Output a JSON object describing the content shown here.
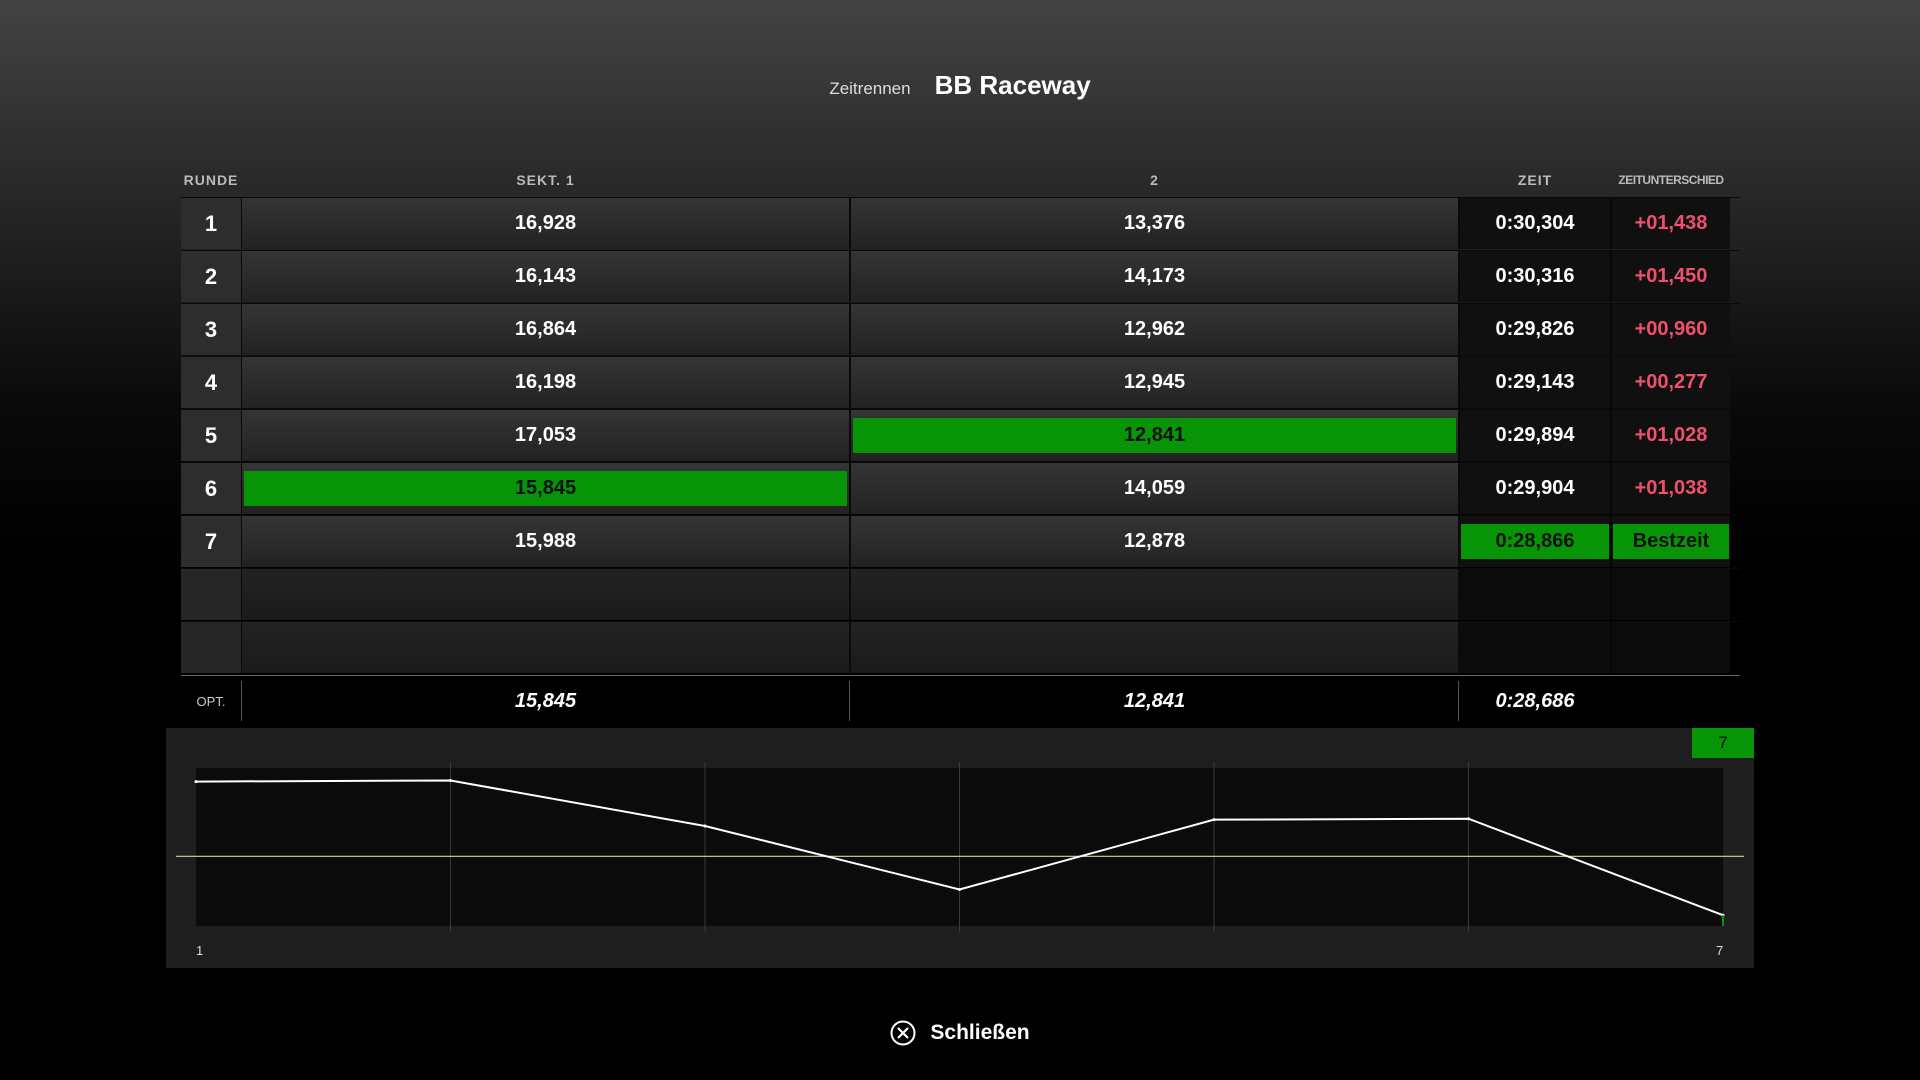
{
  "header": {
    "mode": "Zeitrennen",
    "track": "BB Raceway"
  },
  "columns": {
    "lap": "RUNDE",
    "sector1": "SEKT. 1",
    "sector2": "2",
    "time": "ZEIT",
    "diff": "ZEITUNTERSCHIED"
  },
  "laps": [
    {
      "lap": "1",
      "s1": "16,928",
      "s2": "13,376",
      "time": "0:30,304",
      "diff": "+01,438"
    },
    {
      "lap": "2",
      "s1": "16,143",
      "s2": "14,173",
      "time": "0:30,316",
      "diff": "+01,450"
    },
    {
      "lap": "3",
      "s1": "16,864",
      "s2": "12,962",
      "time": "0:29,826",
      "diff": "+00,960"
    },
    {
      "lap": "4",
      "s1": "16,198",
      "s2": "12,945",
      "time": "0:29,143",
      "diff": "+00,277"
    },
    {
      "lap": "5",
      "s1": "17,053",
      "s2": "12,841",
      "time": "0:29,894",
      "diff": "+01,028"
    },
    {
      "lap": "6",
      "s1": "15,845",
      "s2": "14,059",
      "time": "0:29,904",
      "diff": "+01,038"
    },
    {
      "lap": "7",
      "s1": "15,988",
      "s2": "12,878",
      "time": "0:28,866",
      "diff": "Bestzeit"
    }
  ],
  "optimal": {
    "label": "OPT.",
    "s1": "15,845",
    "s2": "12,841",
    "time": "0:28,686"
  },
  "chart": {
    "selected_lap": "7",
    "x_start": "1",
    "x_end": "7",
    "accent_color": "#079407",
    "line_color": "#ffffff",
    "reference_color": "#d8d0a8"
  },
  "chart_data": {
    "type": "line",
    "x": [
      1,
      2,
      3,
      4,
      5,
      6,
      7
    ],
    "series": [
      {
        "values": [
          30.304,
          30.316,
          29.826,
          29.143,
          29.894,
          29.904,
          28.866
        ]
      }
    ],
    "reference_line": 29.5,
    "xlabel": "",
    "ylabel": ""
  },
  "footer": {
    "close_label": "Schließen",
    "close_icon": "cross-button-icon"
  }
}
